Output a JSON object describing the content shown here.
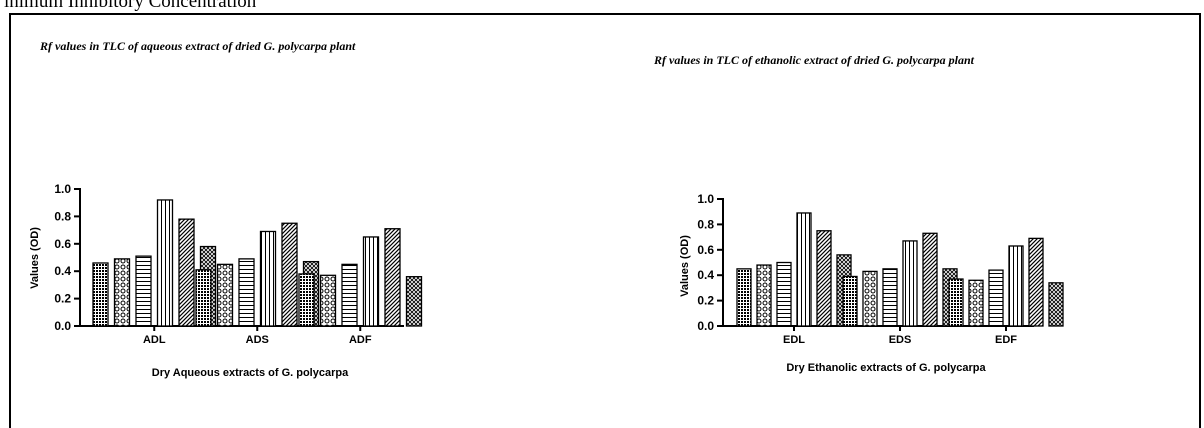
{
  "page": {
    "heading": "inimum Inhibitory Concentration"
  },
  "chart_data": [
    {
      "type": "bar",
      "title": "Rf values in TLC of aqueous extract of dried G. polycarpa plant",
      "xlabel": "Dry Aqueous extracts of G. polycarpa",
      "ylabel": "Values (OD)",
      "ylim": [
        0,
        1.0
      ],
      "yticks": [
        "0.0",
        "0.2",
        "0.4",
        "0.6",
        "0.8",
        "1.0"
      ],
      "categories": [
        "ADL",
        "ADS",
        "ADF"
      ],
      "series": [
        {
          "values": [
            0.46,
            0.41,
            0.38
          ]
        },
        {
          "values": [
            0.49,
            0.45,
            0.37
          ]
        },
        {
          "values": [
            0.51,
            0.49,
            0.45
          ]
        },
        {
          "values": [
            0.92,
            0.69,
            0.65
          ]
        },
        {
          "values": [
            0.78,
            0.75,
            0.71
          ]
        },
        {
          "values": [
            0.58,
            0.47,
            0.36
          ]
        }
      ],
      "grid": false,
      "legend": "none"
    },
    {
      "type": "bar",
      "title": "Rf values in TLC of ethanolic extract of dried G. polycarpa plant",
      "xlabel": "Dry Ethanolic extracts of G. polycarpa",
      "ylabel": "Values (OD)",
      "ylim": [
        0,
        1.0
      ],
      "yticks": [
        "0.0",
        "0.2",
        "0.4",
        "0.6",
        "0.8",
        "1.0"
      ],
      "categories": [
        "EDL",
        "EDS",
        "EDF"
      ],
      "series": [
        {
          "values": [
            0.45,
            0.39,
            0.37
          ]
        },
        {
          "values": [
            0.48,
            0.43,
            0.36
          ]
        },
        {
          "values": [
            0.5,
            0.45,
            0.44
          ]
        },
        {
          "values": [
            0.89,
            0.67,
            0.63
          ]
        },
        {
          "values": [
            0.75,
            0.73,
            0.69
          ]
        },
        {
          "values": [
            0.56,
            0.45,
            0.34
          ]
        }
      ],
      "grid": false,
      "legend": "none"
    }
  ]
}
